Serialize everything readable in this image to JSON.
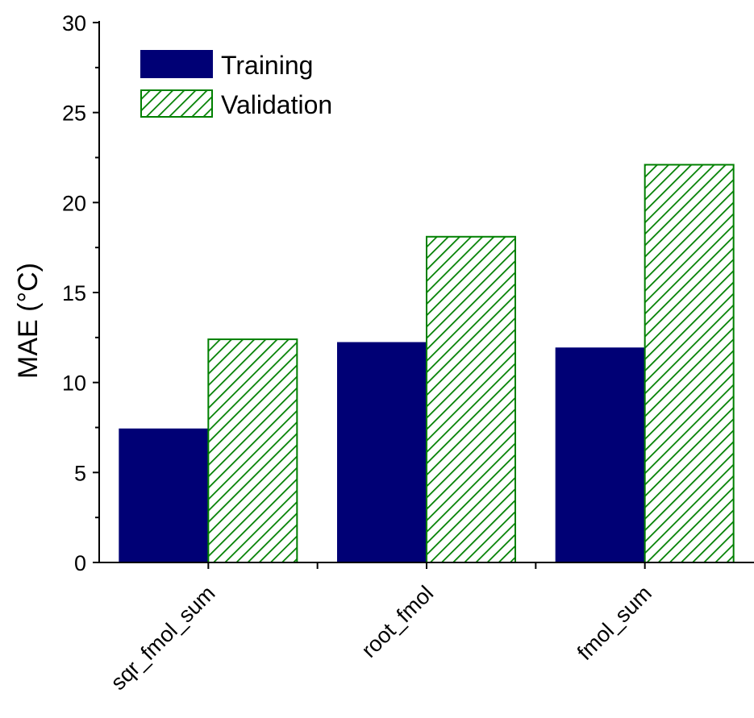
{
  "chart_data": {
    "type": "bar",
    "title": "",
    "xlabel": "",
    "ylabel": "MAE (°C)",
    "categories": [
      "sqr_fmol_sum",
      "root_fmol",
      "fmol_sum"
    ],
    "series": [
      {
        "name": "Training",
        "values": [
          7.4,
          12.2,
          11.9
        ],
        "color": "#000075",
        "pattern": "solid"
      },
      {
        "name": "Validation",
        "values": [
          12.4,
          18.1,
          22.1
        ],
        "color": "#008000",
        "pattern": "hatched"
      }
    ],
    "ylim": [
      0,
      30
    ],
    "yticks": [
      "0",
      "5",
      "10",
      "15",
      "20",
      "25",
      "30"
    ],
    "grid": false,
    "legend_position": "top-left"
  }
}
